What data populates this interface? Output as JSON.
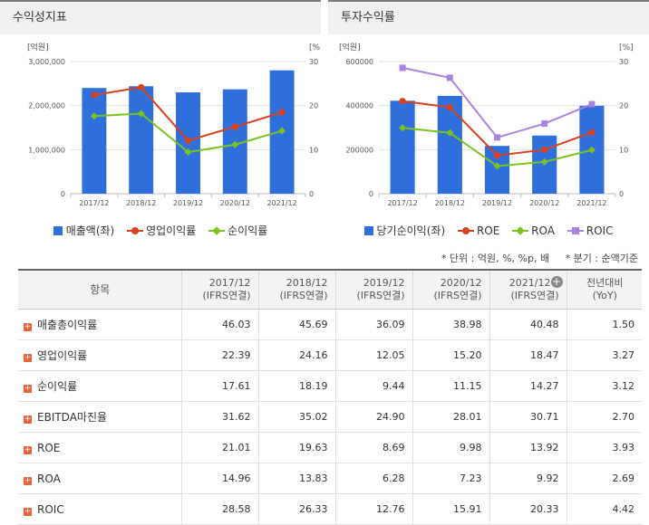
{
  "left_panel": {
    "title": "수익성지표",
    "legend": [
      "매출액(좌)",
      "영업이익률",
      "순이익률"
    ]
  },
  "right_panel": {
    "title": "투자수익률",
    "legend": [
      "당기순이익(좌)",
      "ROE",
      "ROA",
      "ROIC"
    ]
  },
  "notes": {
    "unit": "* 단위 : 억원, %, %p, 배",
    "quarter": "* 분기 : 순액기준"
  },
  "table": {
    "headers": [
      {
        "line1": "항목",
        "line2": ""
      },
      {
        "line1": "2017/12",
        "line2": "(IFRS연결)"
      },
      {
        "line1": "2018/12",
        "line2": "(IFRS연결)"
      },
      {
        "line1": "2019/12",
        "line2": "(IFRS연결)"
      },
      {
        "line1": "2020/12",
        "line2": "(IFRS연결)"
      },
      {
        "line1": "2021/12",
        "line2": "(IFRS연결)"
      },
      {
        "line1": "전년대비",
        "line2": "(YoY)"
      }
    ],
    "rows": [
      {
        "label": "매출총이익률",
        "values": [
          "46.03",
          "45.69",
          "36.09",
          "38.98",
          "40.48",
          "1.50"
        ]
      },
      {
        "label": "영업이익률",
        "values": [
          "22.39",
          "24.16",
          "12.05",
          "15.20",
          "18.47",
          "3.27"
        ]
      },
      {
        "label": "순이익률",
        "values": [
          "17.61",
          "18.19",
          "9.44",
          "11.15",
          "14.27",
          "3.12"
        ]
      },
      {
        "label": "EBITDA마진율",
        "values": [
          "31.62",
          "35.02",
          "24.90",
          "28.01",
          "30.71",
          "2.70"
        ]
      },
      {
        "label": "ROE",
        "values": [
          "21.01",
          "19.63",
          "8.69",
          "9.98",
          "13.92",
          "3.93"
        ]
      },
      {
        "label": "ROA",
        "values": [
          "14.96",
          "13.83",
          "6.28",
          "7.23",
          "9.92",
          "2.69"
        ]
      },
      {
        "label": "ROIC",
        "values": [
          "28.58",
          "26.33",
          "12.76",
          "15.91",
          "20.33",
          "4.42"
        ]
      }
    ]
  },
  "chart_data": [
    {
      "type": "bar",
      "title": "수익성지표",
      "categories": [
        "2017/12",
        "2018/12",
        "2019/12",
        "2020/12",
        "2021/12"
      ],
      "left_axis": {
        "label": "[억원]",
        "ticks": [
          "0",
          "1,000,000",
          "2,000,000",
          "3,000,000"
        ],
        "ylim": [
          0,
          3000000
        ]
      },
      "right_axis": {
        "label": "[%]",
        "ticks": [
          "0",
          "10",
          "20",
          "30"
        ],
        "ylim": [
          0,
          30
        ]
      },
      "series": [
        {
          "name": "매출액(좌)",
          "kind": "bar",
          "axis": "left",
          "color": "#2f6fdc",
          "values": [
            2400000,
            2440000,
            2300000,
            2370000,
            2800000
          ]
        },
        {
          "name": "영업이익률",
          "kind": "line",
          "axis": "right",
          "color": "#d8401e",
          "marker": "circle",
          "values": [
            22.39,
            24.16,
            12.05,
            15.2,
            18.47
          ]
        },
        {
          "name": "순이익률",
          "kind": "line",
          "axis": "right",
          "color": "#7cc21e",
          "marker": "diamond",
          "values": [
            17.61,
            18.19,
            9.44,
            11.15,
            14.27
          ]
        }
      ],
      "grid": true,
      "legend_position": "bottom"
    },
    {
      "type": "bar",
      "title": "투자수익률",
      "categories": [
        "2017/12",
        "2018/12",
        "2019/12",
        "2020/12",
        "2021/12"
      ],
      "left_axis": {
        "label": "[억원]",
        "ticks": [
          "0",
          "200000",
          "400000",
          "600000"
        ],
        "ylim": [
          0,
          600000
        ]
      },
      "right_axis": {
        "label": "[%]",
        "ticks": [
          "0",
          "10",
          "20",
          "30"
        ],
        "ylim": [
          0,
          30
        ]
      },
      "series": [
        {
          "name": "당기순이익(좌)",
          "kind": "bar",
          "axis": "left",
          "color": "#2f6fdc",
          "values": [
            422000,
            444000,
            217000,
            264000,
            399000
          ]
        },
        {
          "name": "ROE",
          "kind": "line",
          "axis": "right",
          "color": "#d8401e",
          "marker": "circle",
          "values": [
            21.01,
            19.63,
            8.69,
            9.98,
            13.92
          ]
        },
        {
          "name": "ROA",
          "kind": "line",
          "axis": "right",
          "color": "#7cc21e",
          "marker": "diamond",
          "values": [
            14.96,
            13.83,
            6.28,
            7.23,
            9.92
          ]
        },
        {
          "name": "ROIC",
          "kind": "line",
          "axis": "right",
          "color": "#a983e0",
          "marker": "square",
          "values": [
            28.58,
            26.33,
            12.76,
            15.91,
            20.33
          ]
        }
      ],
      "grid": true,
      "legend_position": "bottom"
    }
  ]
}
